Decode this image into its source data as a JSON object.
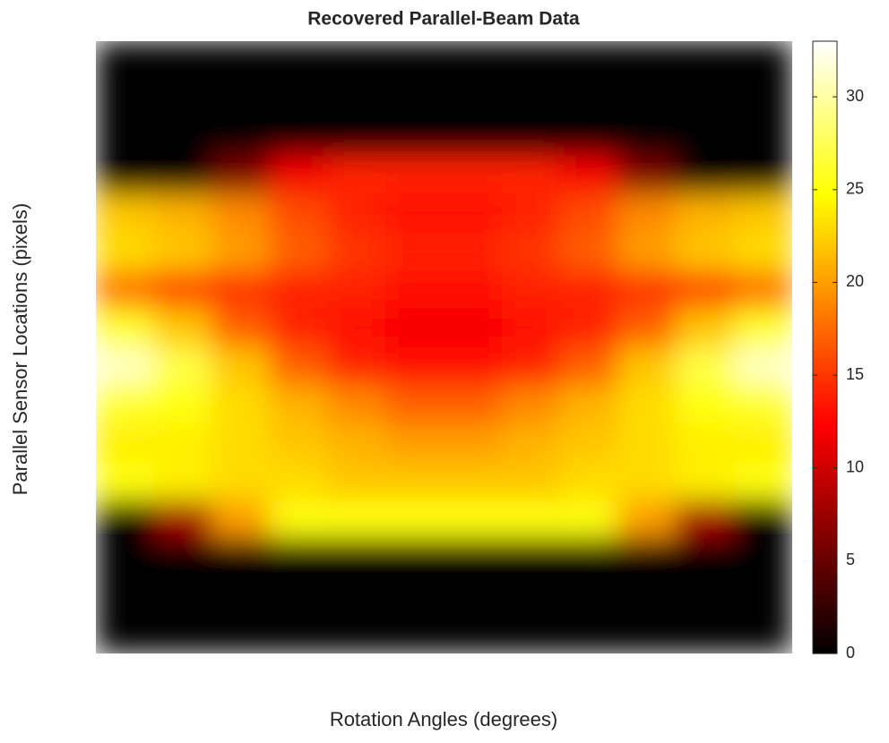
{
  "chart_data": {
    "type": "heatmap",
    "title": "Recovered Parallel-Beam Data",
    "xlabel": "Rotation Angles (degrees)",
    "ylabel": "Parallel Sensor Locations (pixels)",
    "colormap": "hot",
    "clim": [
      0,
      33
    ],
    "cticks": [
      0,
      5,
      10,
      15,
      20,
      25,
      30
    ],
    "z": [
      [
        0,
        0,
        0,
        0,
        0,
        0,
        0,
        0,
        0,
        0,
        0,
        0
      ],
      [
        0,
        0,
        0,
        0,
        0,
        0,
        0,
        0,
        0,
        0,
        0,
        0
      ],
      [
        0,
        0,
        0,
        0,
        0,
        0,
        0,
        0,
        0,
        0,
        0,
        0
      ],
      [
        0,
        0,
        6,
        12,
        14,
        14,
        14,
        14,
        12,
        6,
        0,
        0
      ],
      [
        22,
        21,
        19,
        16,
        14,
        13,
        13,
        14,
        16,
        19,
        21,
        22
      ],
      [
        23,
        22,
        20,
        17,
        15,
        14,
        14,
        15,
        17,
        20,
        22,
        23
      ],
      [
        18,
        16,
        15,
        14,
        14,
        13,
        13,
        14,
        14,
        15,
        16,
        18
      ],
      [
        26,
        22,
        17,
        14,
        13,
        12,
        12,
        13,
        14,
        17,
        22,
        26
      ],
      [
        31,
        27,
        22,
        17,
        14,
        13,
        13,
        14,
        17,
        22,
        27,
        31
      ],
      [
        26,
        25,
        23,
        21,
        19,
        17,
        17,
        19,
        21,
        23,
        25,
        26
      ],
      [
        24,
        24,
        23,
        22,
        21,
        20,
        20,
        21,
        22,
        23,
        24,
        24
      ],
      [
        25,
        24,
        23,
        23,
        22,
        22,
        22,
        22,
        23,
        23,
        24,
        25
      ],
      [
        0,
        8,
        20,
        25,
        25,
        25,
        25,
        25,
        25,
        20,
        8,
        0
      ],
      [
        0,
        0,
        0,
        0,
        0,
        0,
        0,
        0,
        0,
        0,
        0,
        0
      ],
      [
        0,
        0,
        0,
        0,
        0,
        0,
        0,
        0,
        0,
        0,
        0,
        0
      ],
      [
        0,
        0,
        0,
        0,
        0,
        0,
        0,
        0,
        0,
        0,
        0,
        0
      ]
    ]
  }
}
